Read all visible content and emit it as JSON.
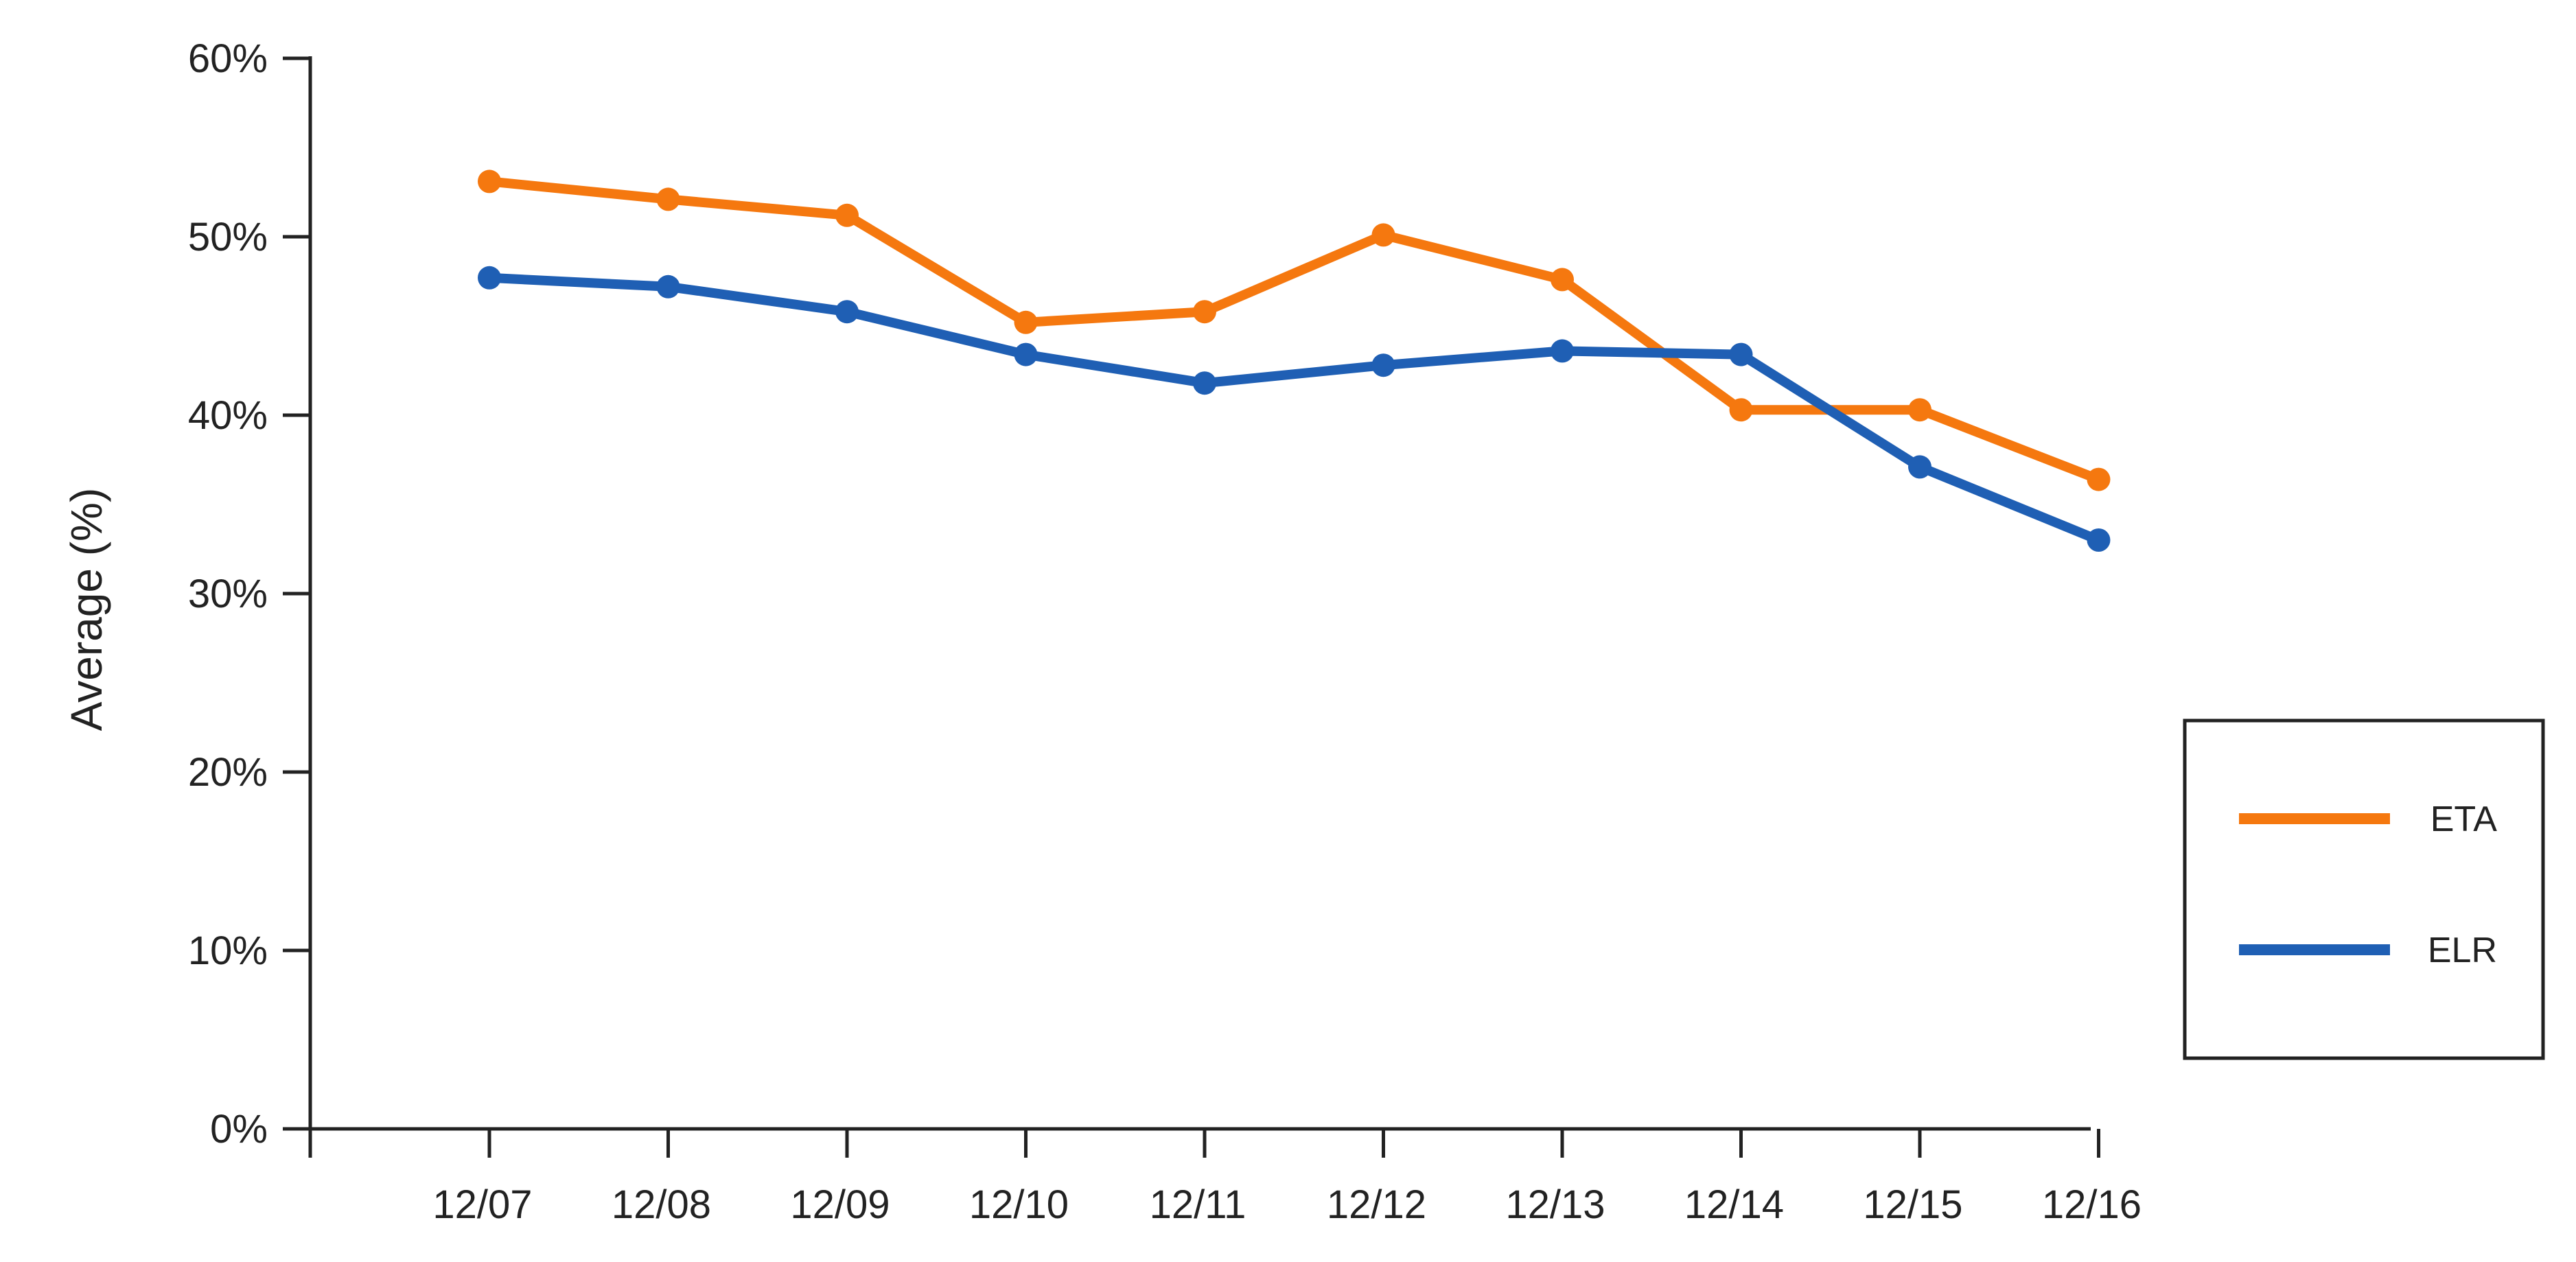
{
  "chart_data": {
    "type": "line",
    "title": "",
    "xlabel": "",
    "ylabel": "Average (%)",
    "categories": [
      "12/07",
      "12/08",
      "12/09",
      "12/10",
      "12/11",
      "12/12",
      "12/13",
      "12/14",
      "12/15",
      "12/16"
    ],
    "y_ticks": [
      "0%",
      "10%",
      "20%",
      "30%",
      "40%",
      "50%",
      "60%"
    ],
    "ylim": [
      0,
      60
    ],
    "grid": false,
    "legend_position": "right",
    "series": [
      {
        "name": "ETA",
        "color": "#F5780F",
        "values": [
          53.1,
          52.1,
          51.2,
          45.2,
          45.8,
          50.1,
          47.6,
          40.3,
          40.3,
          36.4
        ]
      },
      {
        "name": "ELR",
        "color": "#1F5FB4",
        "values": [
          47.7,
          47.2,
          45.8,
          43.4,
          41.8,
          42.8,
          43.6,
          43.4,
          37.1,
          33.0
        ]
      }
    ]
  }
}
